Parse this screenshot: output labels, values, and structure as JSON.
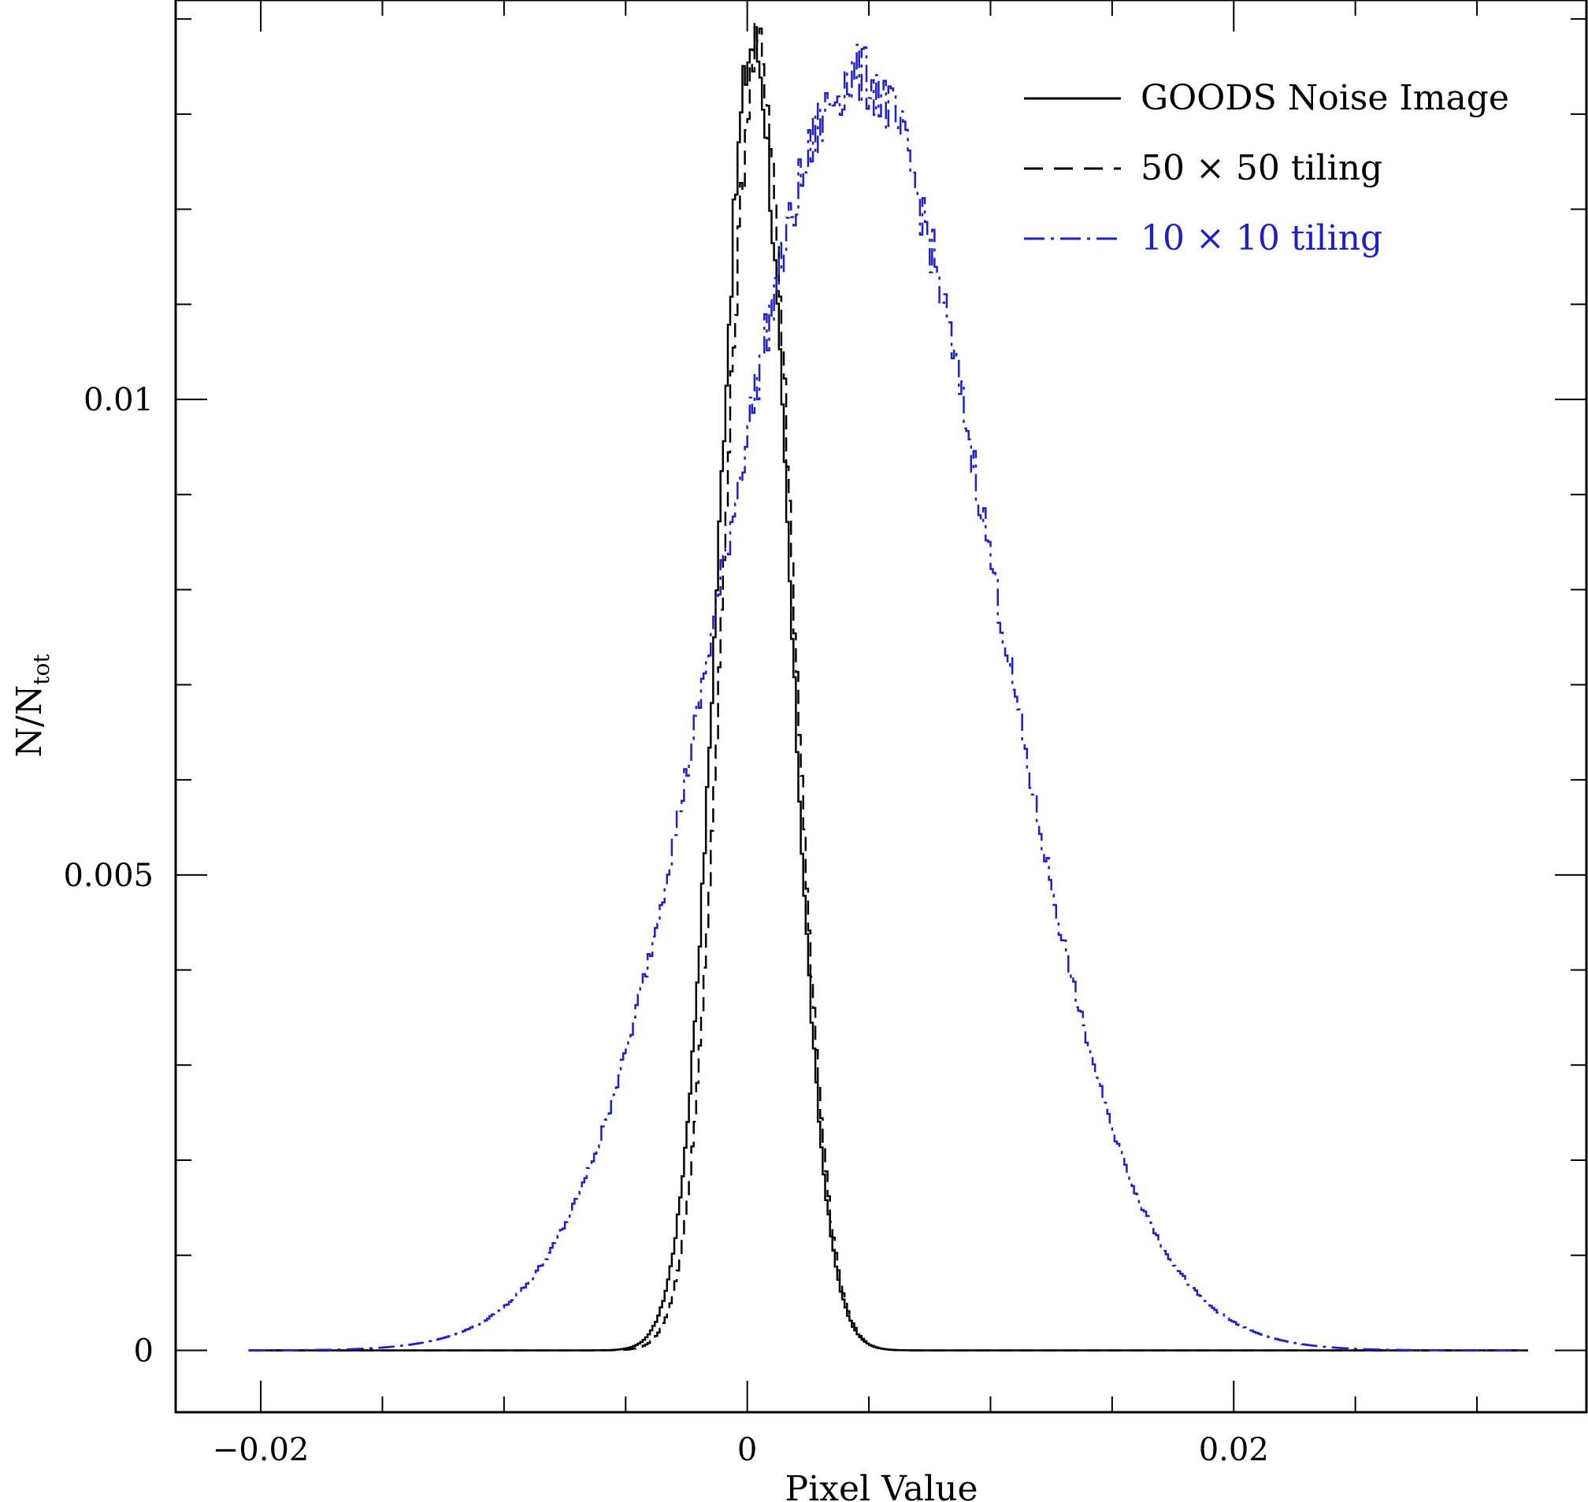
{
  "chart_data": {
    "type": "line",
    "title": "",
    "xlabel": "Pixel Value",
    "ylabel": "N/N",
    "ylabel_subscript": "tot",
    "xlim": [
      -0.0235,
      0.0345
    ],
    "ylim": [
      -0.00065,
      0.0142
    ],
    "x_ticks": [
      {
        "value": -0.02,
        "label": "−0.02"
      },
      {
        "value": 0,
        "label": "0"
      },
      {
        "value": 0.02,
        "label": "0.02"
      }
    ],
    "y_ticks": [
      {
        "value": 0,
        "label": "0"
      },
      {
        "value": 0.005,
        "label": "0.005"
      },
      {
        "value": 0.01,
        "label": "0.01"
      }
    ],
    "x_minor_step": 0.005,
    "y_minor_step": 0.001,
    "grid": false,
    "legend_position": "top-right",
    "series": [
      {
        "name": "GOODS Noise Image",
        "style": "solid",
        "color": "#000000",
        "center": 0.0002,
        "sigma": 0.00145,
        "peak": 0.01375,
        "x_range": [
          -0.0205,
          0.032
        ]
      },
      {
        "name": "50 × 50 tiling",
        "style": "dashed",
        "color": "#000000",
        "center": 0.0004,
        "sigma": 0.0014,
        "peak": 0.0137,
        "x_range": [
          -0.0205,
          0.032
        ]
      },
      {
        "name": "10 × 10 tiling",
        "style": "dashdot",
        "color": "#1f1fc8",
        "center": 0.0045,
        "sigma": 0.0056,
        "peak": 0.0134,
        "x_range": [
          -0.0205,
          0.032
        ]
      }
    ]
  }
}
